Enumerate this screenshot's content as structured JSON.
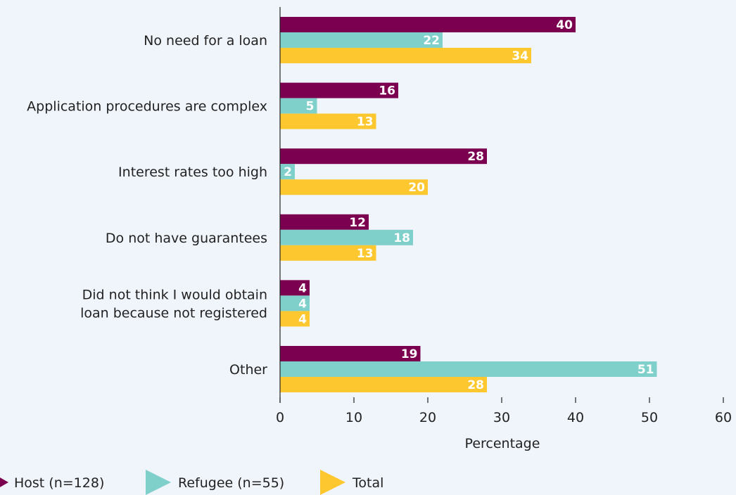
{
  "chart_data": {
    "type": "bar",
    "orientation": "horizontal",
    "categories": [
      [
        "No need for a loan"
      ],
      [
        "Application procedures are complex"
      ],
      [
        "Interest rates too high"
      ],
      [
        "Do not have guarantees"
      ],
      [
        "Did not think I would obtain",
        "loan because not registered"
      ],
      [
        "Other"
      ]
    ],
    "series": [
      {
        "name": "Host (n=128)",
        "color": "#7b0050",
        "values": [
          40,
          16,
          28,
          12,
          4,
          19
        ]
      },
      {
        "name": "Refugee (n=55)",
        "color": "#7fcfca",
        "values": [
          22,
          5,
          2,
          18,
          4,
          51
        ]
      },
      {
        "name": "Total",
        "color": "#fdc82f",
        "values": [
          34,
          13,
          20,
          13,
          4,
          28
        ]
      }
    ],
    "xlabel": "Percentage",
    "xlim": [
      0,
      60
    ],
    "xticks": [
      0,
      10,
      20,
      30,
      40,
      50,
      60
    ],
    "grid": false,
    "data_labels": true,
    "legend_position": "bottom"
  }
}
